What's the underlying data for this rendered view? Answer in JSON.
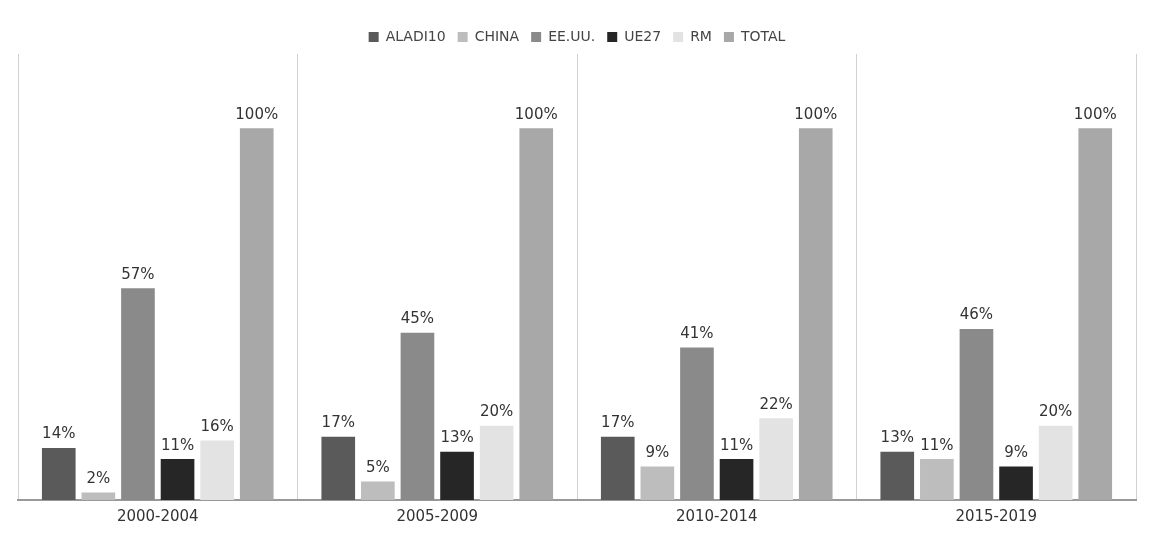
{
  "chart_data": {
    "type": "bar",
    "categories": [
      "2000-2004",
      "2005-2009",
      "2010-2014",
      "2015-2019"
    ],
    "series": [
      {
        "name": "ALADI10",
        "color": "#5a5a5a",
        "values": [
          14,
          17,
          17,
          13
        ],
        "value_labels": [
          "14%",
          "17%",
          "17%",
          "13%"
        ]
      },
      {
        "name": "CHINA",
        "color": "#bdbdbd",
        "values": [
          2,
          5,
          9,
          11
        ],
        "value_labels": [
          "2%",
          "5%",
          "9%",
          "11%"
        ]
      },
      {
        "name": "EE.UU.",
        "color": "#8a8a8a",
        "values": [
          57,
          45,
          41,
          46
        ],
        "value_labels": [
          "57%",
          "45%",
          "41%",
          "46%"
        ]
      },
      {
        "name": "UE27",
        "color": "#262626",
        "values": [
          11,
          13,
          11,
          9
        ],
        "value_labels": [
          "11%",
          "13%",
          "11%",
          "9%"
        ]
      },
      {
        "name": "RM",
        "color": "#e3e3e3",
        "values": [
          16,
          20,
          22,
          20
        ],
        "value_labels": [
          "16%",
          "20%",
          "22%",
          "20%"
        ]
      },
      {
        "name": "TOTAL",
        "color": "#a8a8a8",
        "values": [
          100,
          100,
          100,
          100
        ],
        "value_labels": [
          "100%",
          "100%",
          "100%",
          "100%"
        ]
      }
    ],
    "grid": "x",
    "legend": "top"
  }
}
